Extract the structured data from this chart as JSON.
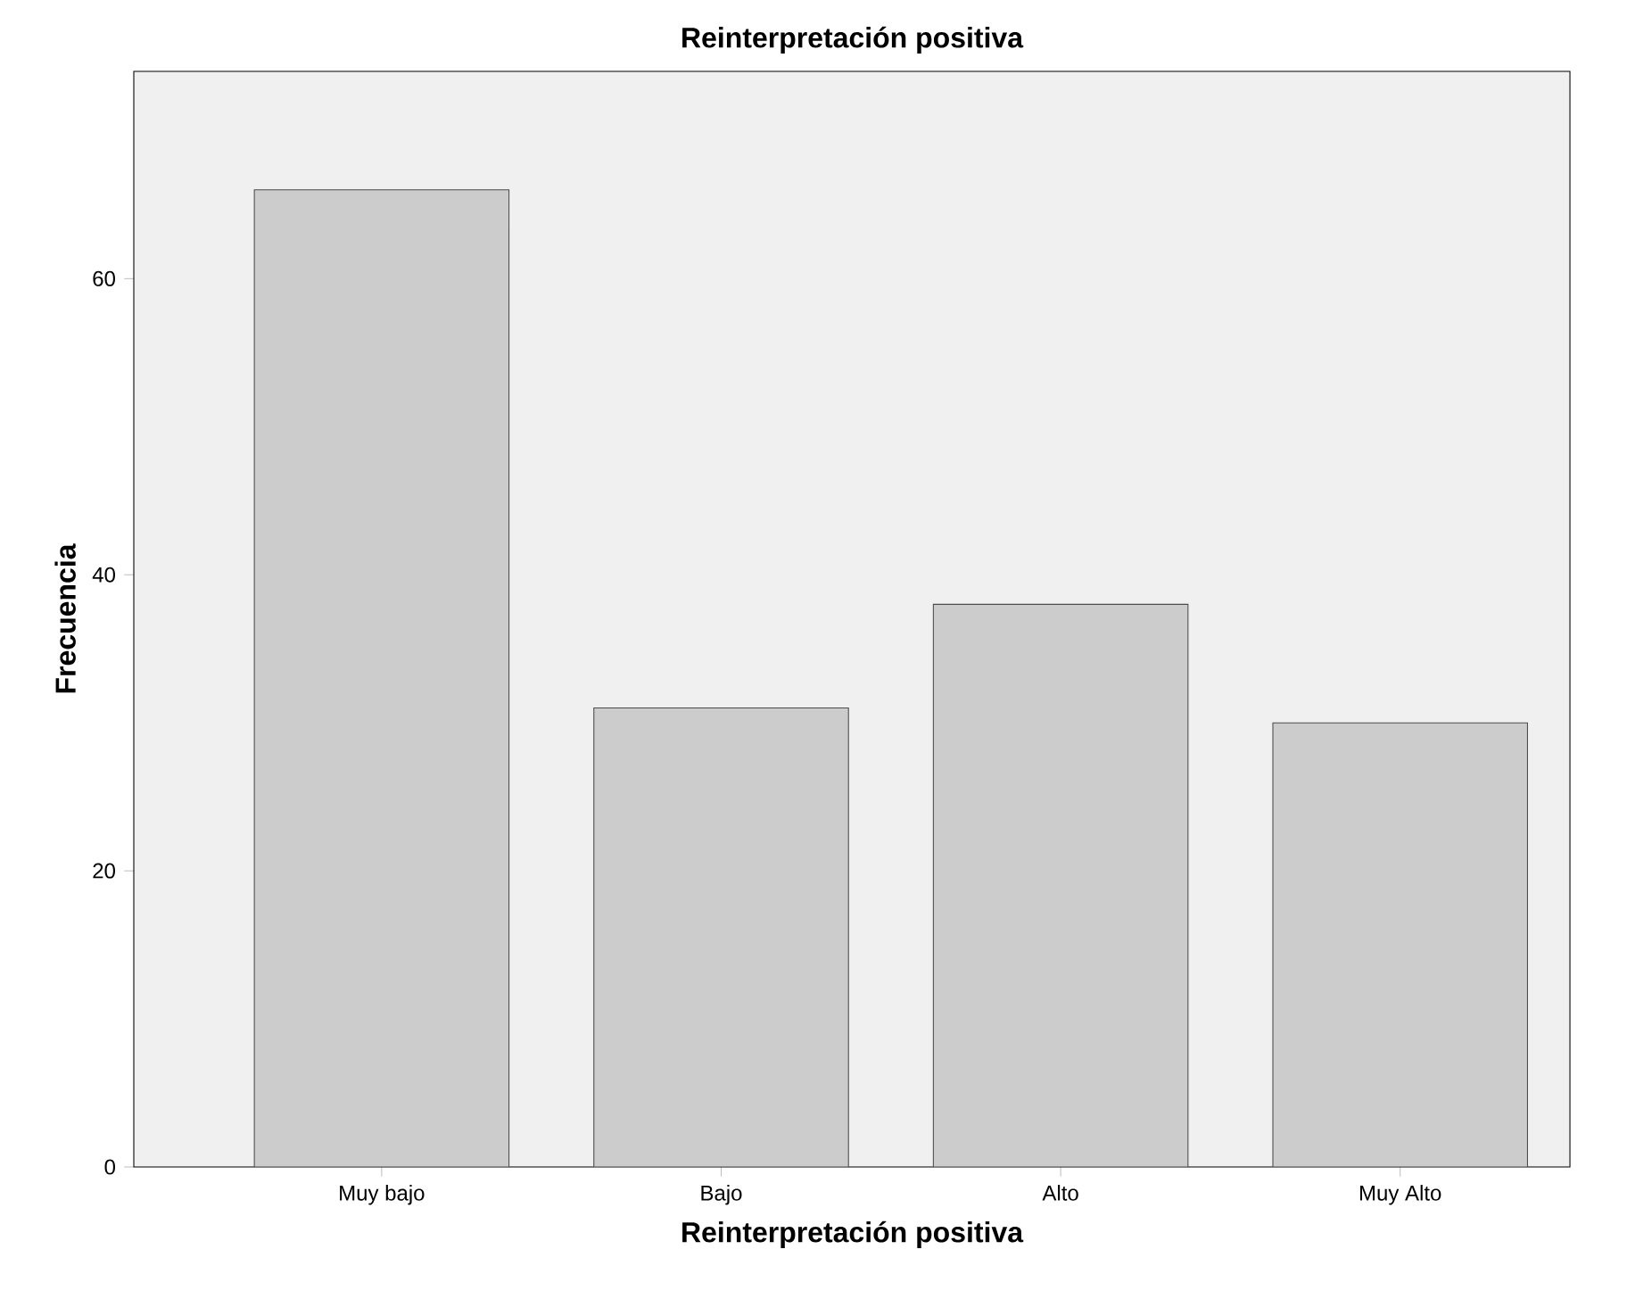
{
  "chart_data": {
    "type": "bar",
    "title": "Reinterpretación positiva",
    "xlabel": "Reinterpretación positiva",
    "ylabel": "Frecuencia",
    "categories": [
      "Muy bajo",
      "Bajo",
      "Alto",
      "Muy Alto"
    ],
    "values": [
      66,
      31,
      38,
      30
    ],
    "color": "#cccccc",
    "ylim": [
      0,
      74
    ],
    "yticks": [
      0,
      20,
      40,
      60
    ]
  }
}
